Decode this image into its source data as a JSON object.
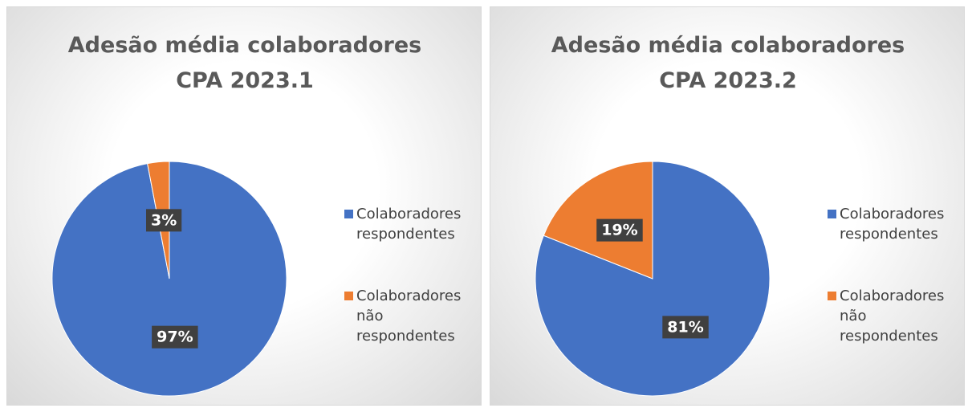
{
  "chart_data": [
    {
      "type": "pie",
      "title": "Adesão média colaboradores CPA 2023.1",
      "categories": [
        "Colaboradores respondentes",
        "Colaboradores não respondentes"
      ],
      "values": [
        97,
        3
      ],
      "value_labels": [
        "97%",
        "3%"
      ],
      "colors": [
        "#4472c4",
        "#ed7d31"
      ],
      "legend": "right"
    },
    {
      "type": "pie",
      "title": "Adesão média colaboradores CPA 2023.2",
      "categories": [
        "Colaboradores respondentes",
        "Colaboradores não respondentes"
      ],
      "values": [
        81,
        19
      ],
      "value_labels": [
        "81%",
        "19%"
      ],
      "colors": [
        "#4472c4",
        "#ed7d31"
      ],
      "legend": "right"
    }
  ]
}
